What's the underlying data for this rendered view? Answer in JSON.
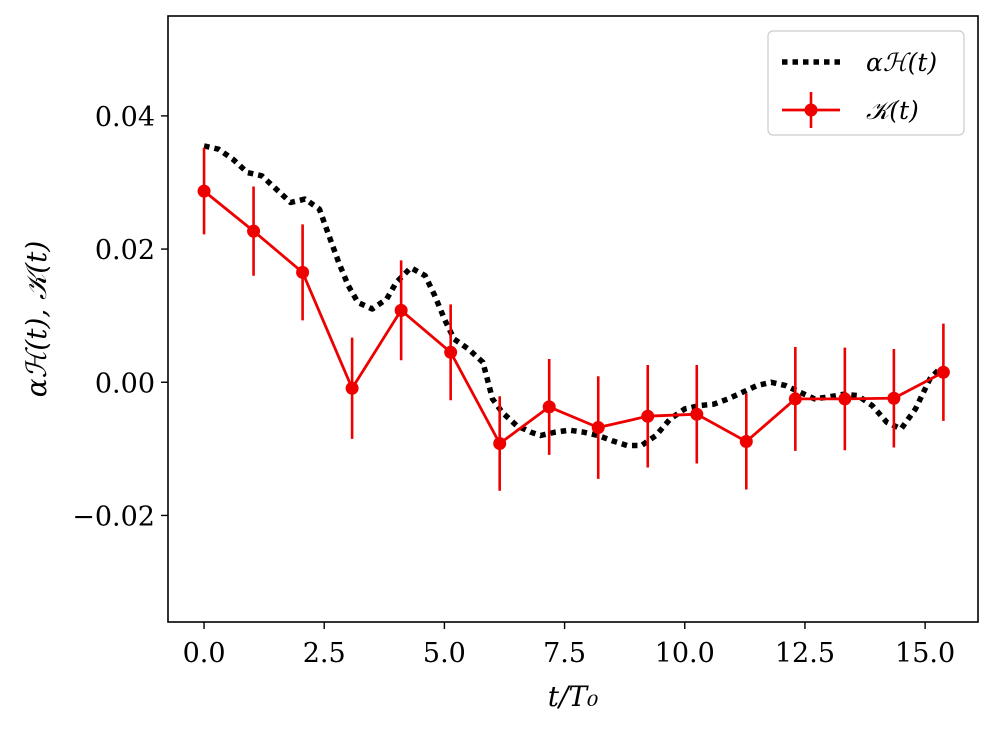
{
  "chart_data": {
    "type": "line",
    "title": "",
    "xlabel": "t/T₀",
    "ylabel": "αℋ(t), 𝒦(t)",
    "xlim": [
      -0.75,
      16.1
    ],
    "ylim": [
      -0.036,
      0.055
    ],
    "grid": false,
    "legend_position": "top-right",
    "x_ticks": [
      {
        "value": 0.0,
        "label": "0.0"
      },
      {
        "value": 2.5,
        "label": "2.5"
      },
      {
        "value": 5.0,
        "label": "5.0"
      },
      {
        "value": 7.5,
        "label": "7.5"
      },
      {
        "value": 10.0,
        "label": "10.0"
      },
      {
        "value": 12.5,
        "label": "12.5"
      },
      {
        "value": 15.0,
        "label": "15.0"
      }
    ],
    "y_ticks": [
      {
        "value": -0.02,
        "label": "−0.02"
      },
      {
        "value": 0.0,
        "label": "0.00"
      },
      {
        "value": 0.02,
        "label": "0.02"
      },
      {
        "value": 0.04,
        "label": "0.04"
      }
    ],
    "series": [
      {
        "name": "αℋ(t)",
        "style": "dotted",
        "color": "#000000",
        "x": [
          0.0,
          0.3,
          0.6,
          0.9,
          1.2,
          1.5,
          1.8,
          2.1,
          2.4,
          2.6,
          2.8,
          3.0,
          3.2,
          3.5,
          3.8,
          4.0,
          4.3,
          4.6,
          4.8,
          5.0,
          5.2,
          5.5,
          5.8,
          6.0,
          6.2,
          6.5,
          6.8,
          7.0,
          7.3,
          7.6,
          7.9,
          8.2,
          8.5,
          8.8,
          9.1,
          9.4,
          9.7,
          10.0,
          10.3,
          10.6,
          10.9,
          11.2,
          11.5,
          11.8,
          12.1,
          12.4,
          12.7,
          13.0,
          13.3,
          13.6,
          13.9,
          14.2,
          14.5,
          14.8,
          15.1,
          15.3
        ],
        "y": [
          0.0355,
          0.035,
          0.0335,
          0.0315,
          0.031,
          0.029,
          0.027,
          0.0275,
          0.026,
          0.022,
          0.018,
          0.0145,
          0.012,
          0.011,
          0.0125,
          0.015,
          0.0172,
          0.016,
          0.013,
          0.0095,
          0.0065,
          0.005,
          0.003,
          -0.0025,
          -0.0045,
          -0.0065,
          -0.0075,
          -0.008,
          -0.0075,
          -0.0072,
          -0.0075,
          -0.008,
          -0.0088,
          -0.0095,
          -0.0095,
          -0.008,
          -0.0055,
          -0.004,
          -0.0035,
          -0.0033,
          -0.0025,
          -0.0015,
          -0.0005,
          0.0,
          -0.0005,
          -0.0015,
          -0.0025,
          -0.0022,
          -0.0018,
          -0.002,
          -0.0035,
          -0.006,
          -0.007,
          -0.004,
          0.0005,
          0.002
        ]
      },
      {
        "name": "𝒦(t)",
        "style": "solid-markers-errorbars",
        "color": "#ee0000",
        "x": [
          0.0,
          1.03,
          2.05,
          3.08,
          4.1,
          5.13,
          6.15,
          7.18,
          8.2,
          9.23,
          10.25,
          11.28,
          12.3,
          13.33,
          14.35,
          15.38
        ],
        "y": [
          0.0287,
          0.0227,
          0.0165,
          -0.0009,
          0.0108,
          0.0045,
          -0.0092,
          -0.0037,
          -0.0068,
          -0.0051,
          -0.0048,
          -0.0089,
          -0.0025,
          -0.0025,
          -0.0024,
          0.0015
        ],
        "yerr": [
          0.0065,
          0.0067,
          0.0072,
          0.0076,
          0.0075,
          0.0072,
          0.0071,
          0.0072,
          0.0077,
          0.0077,
          0.0074,
          0.0072,
          0.0078,
          0.0077,
          0.0074,
          0.0073
        ]
      }
    ]
  }
}
